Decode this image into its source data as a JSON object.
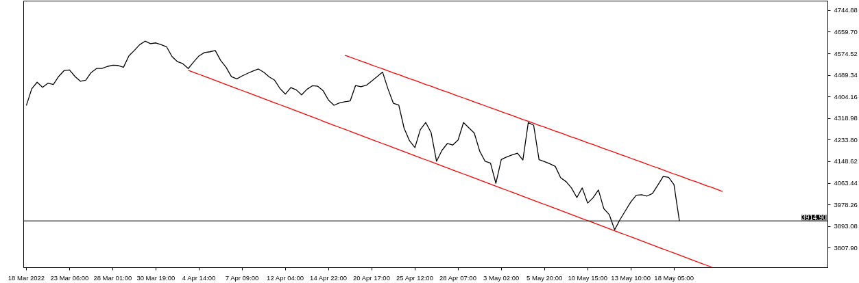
{
  "chart_data": {
    "type": "line",
    "categories": [
      "18 Mar 2022",
      null,
      null,
      null,
      null,
      null,
      null,
      null,
      "23 Mar 06:00",
      null,
      null,
      null,
      null,
      null,
      null,
      null,
      "28 Mar 01:00",
      null,
      null,
      null,
      null,
      null,
      null,
      null,
      "30 Mar 19:00",
      null,
      null,
      null,
      null,
      null,
      null,
      null,
      "4 Apr 14:00",
      null,
      null,
      null,
      null,
      null,
      null,
      null,
      "7 Apr 09:00",
      null,
      null,
      null,
      null,
      null,
      null,
      null,
      "12 Apr 04:00",
      null,
      null,
      null,
      null,
      null,
      null,
      null,
      "14 Apr 22:00",
      null,
      null,
      null,
      null,
      null,
      null,
      null,
      "20 Apr 17:00",
      null,
      null,
      null,
      null,
      null,
      null,
      null,
      "25 Apr 12:00",
      null,
      null,
      null,
      null,
      null,
      null,
      null,
      "28 Apr 07:00",
      null,
      null,
      null,
      null,
      null,
      null,
      null,
      "3 May 02:00",
      null,
      null,
      null,
      null,
      null,
      null,
      null,
      "5 May 20:00",
      null,
      null,
      null,
      null,
      null,
      null,
      null,
      "10 May 15:00",
      null,
      null,
      null,
      null,
      null,
      null,
      null,
      "13 May 10:00",
      null,
      null,
      null,
      null,
      null,
      null,
      null,
      "18 May 05:00",
      null,
      null,
      null,
      null,
      null,
      null,
      null,
      null,
      null,
      null,
      null,
      null,
      null,
      null,
      null,
      null,
      null,
      null,
      null,
      null,
      null,
      null,
      null,
      null,
      null,
      null,
      null,
      null
    ],
    "ylim": [
      3730.6,
      4782.2
    ],
    "yticks": [
      {
        "value": 3807.9,
        "label": "3807.90"
      },
      {
        "value": 3893.08,
        "label": "3893.08"
      },
      {
        "value": 3978.26,
        "label": "3978.26"
      },
      {
        "value": 4063.44,
        "label": "4063.44"
      },
      {
        "value": 4148.62,
        "label": "4148.62"
      },
      {
        "value": 4233.8,
        "label": "4233.80"
      },
      {
        "value": 4318.98,
        "label": "4318.98"
      },
      {
        "value": 4404.16,
        "label": "4404.16"
      },
      {
        "value": 4489.34,
        "label": "4489.34"
      },
      {
        "value": 4574.52,
        "label": "4574.52"
      },
      {
        "value": 4659.7,
        "label": "4659.70"
      },
      {
        "value": 4744.88,
        "label": "4744.88"
      }
    ],
    "grid": false,
    "ref_lines": [
      {
        "axis": "y",
        "value": 3914.9,
        "label": "3914.90",
        "color": "#000000"
      }
    ],
    "series": [
      {
        "color": "#000000",
        "values": [
          4370,
          4436,
          4462,
          4442,
          4458,
          4453,
          4485,
          4508,
          4510,
          4485,
          4466,
          4470,
          4500,
          4516,
          4516,
          4524,
          4529,
          4528,
          4521,
          4566,
          4587,
          4610,
          4624,
          4614,
          4617,
          4610,
          4601,
          4563,
          4543,
          4535,
          4516,
          4542,
          4566,
          4579,
          4582,
          4587,
          4548,
          4521,
          4484,
          4475,
          4487,
          4497,
          4506,
          4514,
          4501,
          4483,
          4470,
          4437,
          4415,
          4441,
          4432,
          4412,
          4434,
          4448,
          4446,
          4428,
          4391,
          4371,
          4380,
          4385,
          4388,
          4449,
          4444,
          4450,
          4467,
          4484,
          4502,
          4436,
          4379,
          4372,
          4280,
          4231,
          4204,
          4275,
          4303,
          4263,
          4150,
          4193,
          4220,
          4214,
          4234,
          4303,
          4282,
          4261,
          4190,
          4150,
          4143,
          4063,
          4157,
          4167,
          4175,
          4182,
          4155,
          4303,
          4292,
          4156,
          4149,
          4140,
          4130,
          4085,
          4070,
          4045,
          4007,
          4045,
          3985,
          4006,
          4037,
          3963,
          3940,
          3880,
          3920,
          3955,
          3990,
          4016,
          4018,
          4013,
          4023,
          4056,
          4090,
          4087,
          4058,
          3915,
          null,
          null,
          null,
          null,
          null,
          null,
          null,
          null,
          null,
          null,
          null,
          null,
          null,
          null,
          null,
          null,
          null,
          null,
          null,
          null,
          null,
          null,
          null,
          null,
          null,
          null,
          null
        ]
      },
      {
        "color": "#ff0000",
        "values": [
          null,
          null,
          null,
          null,
          null,
          null,
          null,
          null,
          null,
          null,
          null,
          null,
          null,
          null,
          null,
          null,
          null,
          null,
          null,
          null,
          null,
          null,
          null,
          null,
          null,
          null,
          null,
          null,
          null,
          null,
          4509,
          4501,
          4493,
          4485,
          4477,
          4469,
          4461,
          4453,
          4445,
          4437,
          4429,
          4421,
          4413,
          4405,
          4397,
          4389,
          4381,
          4373,
          4365,
          4357,
          4349,
          4341,
          4333,
          4325,
          4317,
          4308,
          4300,
          4292,
          4284,
          4276,
          4268,
          4260,
          4252,
          4244,
          4236,
          4228,
          4220,
          4212,
          4204,
          4196,
          4188,
          4180,
          4172,
          4164,
          4156,
          4148,
          4140,
          4132,
          4124,
          4116,
          4108,
          4100,
          4092,
          4084,
          4076,
          4068,
          4060,
          4052,
          4044,
          4036,
          4028,
          4020,
          4012,
          4004,
          3996,
          3988,
          3980,
          3972,
          3964,
          3956,
          3948,
          3940,
          3932,
          3924,
          3916,
          3908,
          3900,
          3892,
          3884,
          3876,
          3868,
          3860,
          3852,
          3844,
          3836,
          3828,
          3820,
          3812,
          3804,
          3796,
          3788,
          3780,
          3772,
          3764,
          3756,
          3748,
          3740,
          3732,
          null,
          null,
          null,
          null,
          null,
          null,
          null,
          null,
          null,
          null,
          null,
          null,
          null,
          null,
          null,
          null,
          null,
          null,
          null,
          null,
          null
        ]
      },
      {
        "color": "#ff0000",
        "values": [
          null,
          null,
          null,
          null,
          null,
          null,
          null,
          null,
          null,
          null,
          null,
          null,
          null,
          null,
          null,
          null,
          null,
          null,
          null,
          null,
          null,
          null,
          null,
          null,
          null,
          null,
          null,
          null,
          null,
          null,
          null,
          null,
          null,
          null,
          null,
          null,
          null,
          null,
          null,
          null,
          null,
          null,
          null,
          null,
          null,
          null,
          null,
          null,
          null,
          null,
          null,
          null,
          null,
          null,
          null,
          null,
          null,
          null,
          null,
          4568,
          4561,
          4553,
          4545,
          4538,
          4530,
          4522,
          4515,
          4507,
          4499,
          4492,
          4484,
          4476,
          4469,
          4461,
          4453,
          4446,
          4438,
          4430,
          4423,
          4415,
          4407,
          4400,
          4392,
          4384,
          4377,
          4369,
          4361,
          4354,
          4346,
          4338,
          4331,
          4323,
          4315,
          4308,
          4300,
          4292,
          4285,
          4277,
          4269,
          4262,
          4254,
          4246,
          4239,
          4231,
          4223,
          4216,
          4208,
          4200,
          4193,
          4185,
          4177,
          4170,
          4162,
          4154,
          4147,
          4139,
          4131,
          4124,
          4116,
          4108,
          4100,
          4093,
          4085,
          4077,
          4070,
          4062,
          4054,
          4047,
          4039,
          4031,
          null,
          null,
          null,
          null,
          null,
          null,
          null,
          null,
          null,
          null,
          null,
          null,
          null,
          null,
          null,
          null,
          null,
          null,
          null
        ]
      }
    ]
  }
}
